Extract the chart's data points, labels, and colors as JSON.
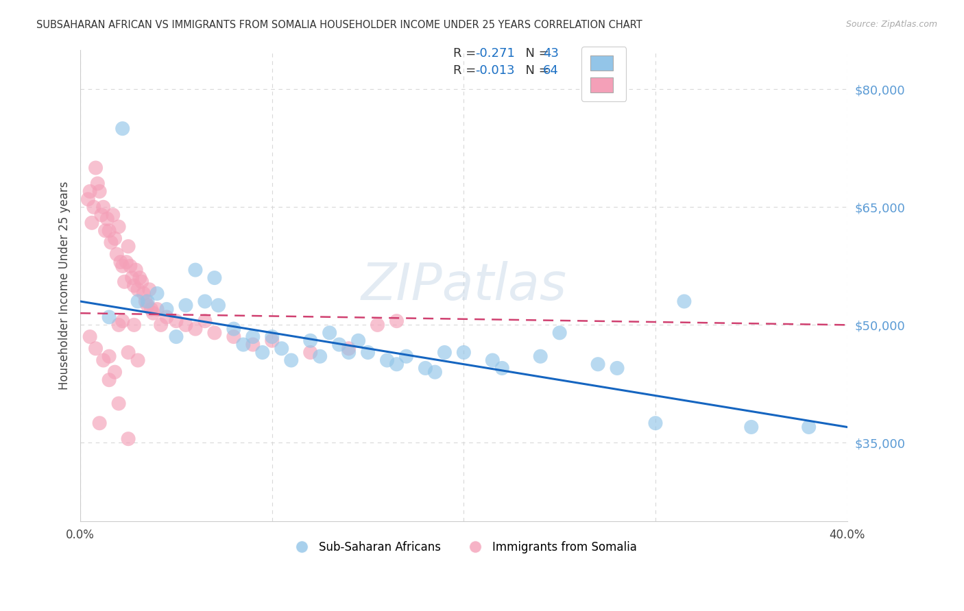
{
  "title": "SUBSAHARAN AFRICAN VS IMMIGRANTS FROM SOMALIA HOUSEHOLDER INCOME UNDER 25 YEARS CORRELATION CHART",
  "source": "Source: ZipAtlas.com",
  "ylabel": "Householder Income Under 25 years",
  "xlim": [
    0.0,
    0.4
  ],
  "ylim": [
    25000,
    85000
  ],
  "yticks": [
    35000,
    50000,
    65000,
    80000
  ],
  "ytick_labels": [
    "$35,000",
    "$50,000",
    "$65,000",
    "$80,000"
  ],
  "xticks": [
    0.0,
    0.1,
    0.2,
    0.3,
    0.4
  ],
  "xtick_labels": [
    "0.0%",
    "",
    "",
    "",
    "40.0%"
  ],
  "blue_color": "#93c5e8",
  "pink_color": "#f4a0b8",
  "blue_line_color": "#1565C0",
  "pink_line_color": "#d04070",
  "watermark_text": "ZIPatlas",
  "background_color": "#ffffff",
  "grid_color": "#d8d8d8",
  "label_blue": "Sub-Saharan Africans",
  "label_pink": "Immigrants from Somalia",
  "blue_scatter_x": [
    0.022,
    0.015,
    0.03,
    0.04,
    0.05,
    0.06,
    0.065,
    0.072,
    0.08,
    0.09,
    0.105,
    0.11,
    0.12,
    0.13,
    0.14,
    0.15,
    0.16,
    0.17,
    0.185,
    0.2,
    0.215,
    0.22,
    0.25,
    0.28,
    0.3,
    0.315,
    0.035,
    0.045,
    0.055,
    0.07,
    0.085,
    0.095,
    0.1,
    0.125,
    0.135,
    0.145,
    0.165,
    0.18,
    0.19,
    0.24,
    0.27,
    0.35,
    0.38
  ],
  "blue_scatter_y": [
    75000,
    51000,
    53000,
    54000,
    48500,
    57000,
    53000,
    52500,
    49500,
    48500,
    47000,
    45500,
    48000,
    49000,
    46500,
    46500,
    45500,
    46000,
    44000,
    46500,
    45500,
    44500,
    49000,
    44500,
    37500,
    53000,
    53000,
    52000,
    52500,
    56000,
    47500,
    46500,
    48500,
    46000,
    47500,
    48000,
    45000,
    44500,
    46500,
    46000,
    45000,
    37000,
    37000
  ],
  "pink_scatter_x": [
    0.004,
    0.005,
    0.006,
    0.007,
    0.008,
    0.009,
    0.01,
    0.011,
    0.012,
    0.013,
    0.014,
    0.015,
    0.016,
    0.017,
    0.018,
    0.019,
    0.02,
    0.021,
    0.022,
    0.023,
    0.024,
    0.025,
    0.026,
    0.027,
    0.028,
    0.029,
    0.03,
    0.031,
    0.032,
    0.033,
    0.034,
    0.035,
    0.036,
    0.037,
    0.038,
    0.04,
    0.042,
    0.045,
    0.05,
    0.055,
    0.06,
    0.065,
    0.07,
    0.08,
    0.09,
    0.1,
    0.12,
    0.14,
    0.155,
    0.165,
    0.01,
    0.015,
    0.02,
    0.025,
    0.005,
    0.008,
    0.012,
    0.018,
    0.022,
    0.028,
    0.015,
    0.025,
    0.03,
    0.02
  ],
  "pink_scatter_y": [
    66000,
    67000,
    63000,
    65000,
    70000,
    68000,
    67000,
    64000,
    65000,
    62000,
    63500,
    62000,
    60500,
    64000,
    61000,
    59000,
    62500,
    58000,
    57500,
    55500,
    58000,
    60000,
    57500,
    56000,
    55000,
    57000,
    54500,
    56000,
    55500,
    54000,
    53000,
    52500,
    54500,
    52000,
    51500,
    52000,
    50000,
    51000,
    50500,
    50000,
    49500,
    50500,
    49000,
    48500,
    47500,
    48000,
    46500,
    47000,
    50000,
    50500,
    37500,
    43000,
    40000,
    35500,
    48500,
    47000,
    45500,
    44000,
    50500,
    50000,
    46000,
    46500,
    45500,
    50000
  ]
}
